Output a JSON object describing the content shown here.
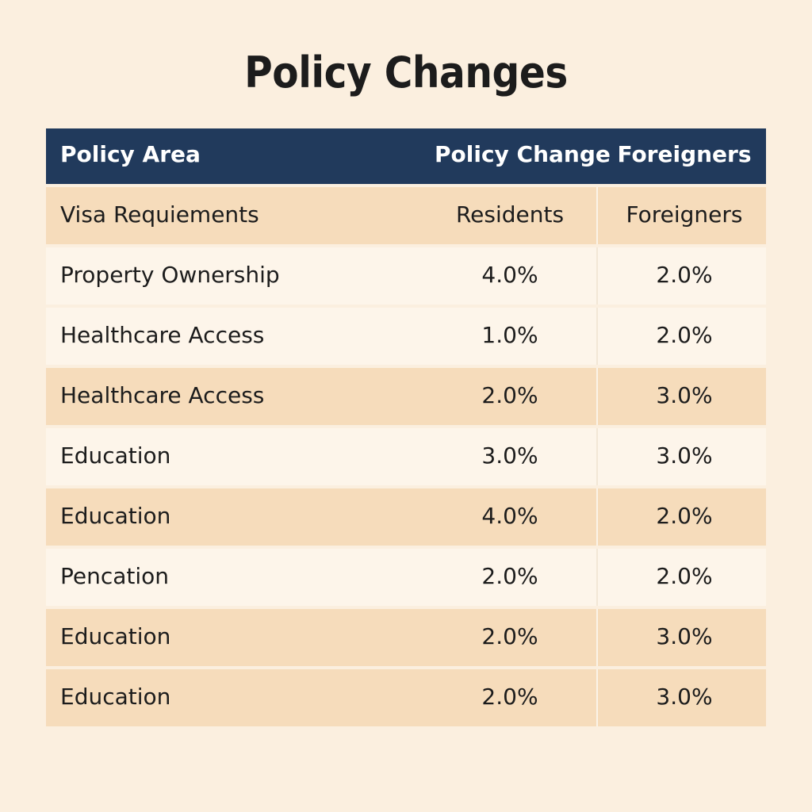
{
  "title": "Policy Changes",
  "colors": {
    "background": "#fbefdf",
    "header_bg": "#213a5c",
    "row_dark": "#f6dcbb",
    "row_light": "#fdf5ea"
  },
  "chart_data": {
    "type": "table",
    "title": "Policy Changes",
    "columns": [
      "Policy Area",
      "Policy Change",
      "Foreigners"
    ],
    "rows": [
      [
        "Visa Requiements",
        "Residents",
        "Foreigners"
      ],
      [
        "Property Ownership",
        "4.0%",
        "2.0%"
      ],
      [
        "Healthcare Access",
        "1.0%",
        "2.0%"
      ],
      [
        "Healthcare Access",
        "2.0%",
        "3.0%"
      ],
      [
        "Education",
        "3.0%",
        "3.0%"
      ],
      [
        "Education",
        "4.0%",
        "2.0%"
      ],
      [
        "Pencation",
        "2.0%",
        "2.0%"
      ],
      [
        "Education",
        "2.0%",
        "3.0%"
      ],
      [
        "Education",
        "2.0%",
        "3.0%"
      ]
    ],
    "row_shading": [
      "dark",
      "light",
      "light",
      "dark",
      "light",
      "dark",
      "light",
      "dark",
      "dark"
    ]
  }
}
